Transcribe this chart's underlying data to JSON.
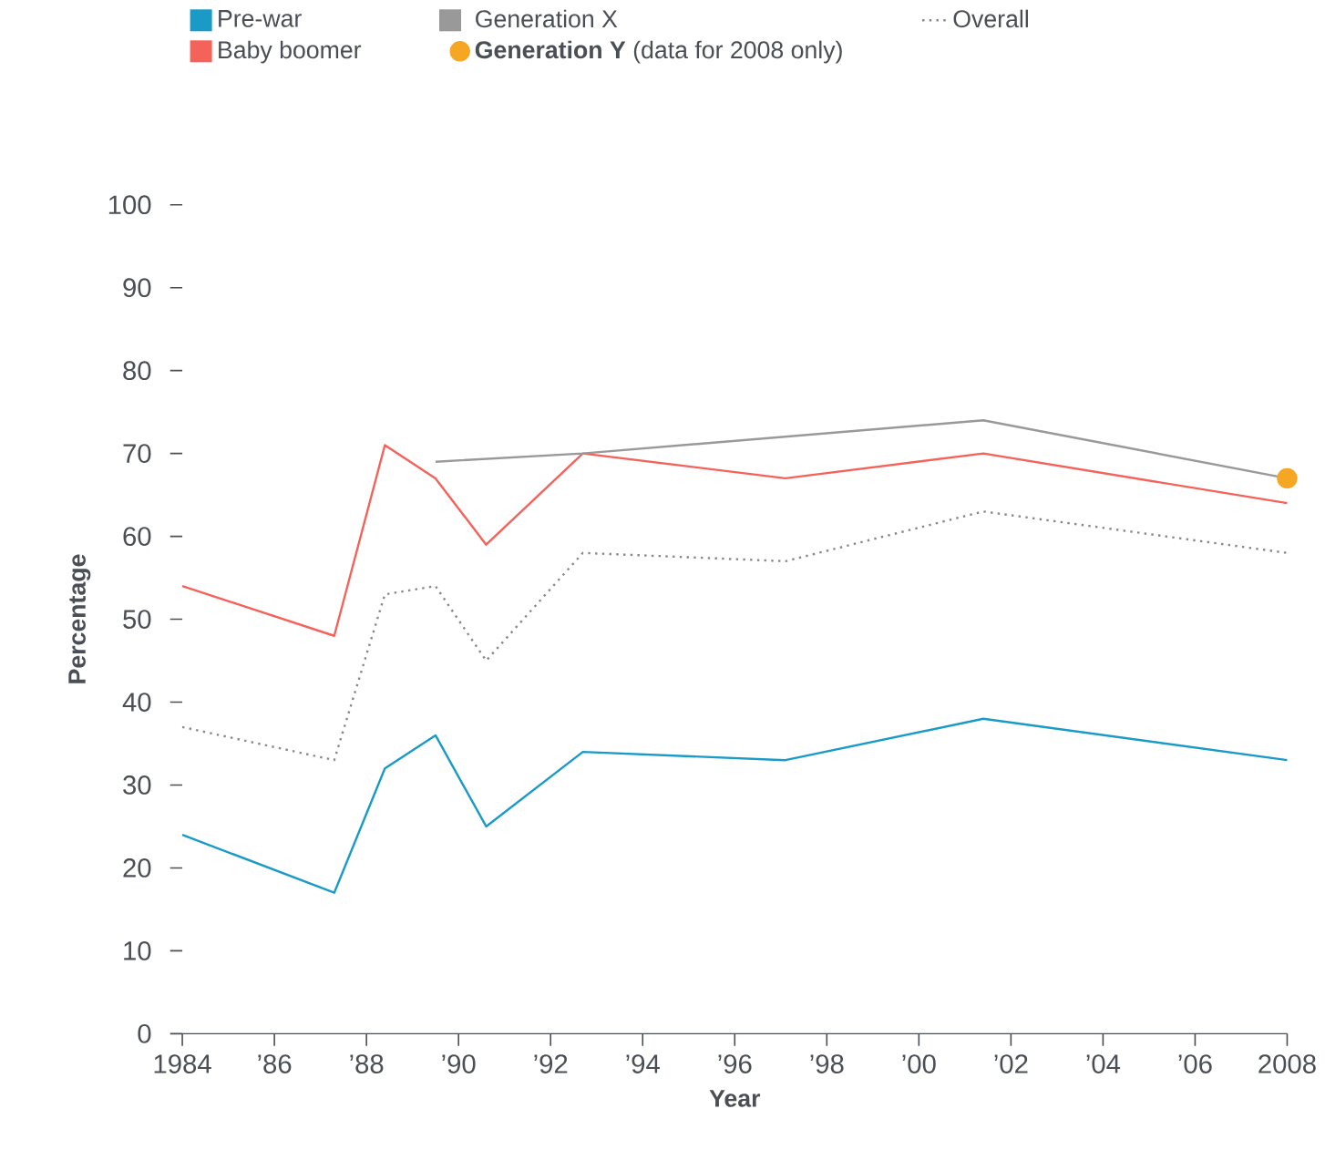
{
  "chart_data": {
    "type": "line",
    "xlabel": "Year",
    "ylabel": "Percentage",
    "x": [
      1984,
      1987.3,
      1988.4,
      1989.5,
      1990.6,
      1992.7,
      1997.1,
      2001.4,
      2008
    ],
    "series": [
      {
        "name": "Pre-war",
        "color": "#1a9bc7",
        "values": [
          24,
          17,
          32,
          36,
          25,
          34,
          33,
          38,
          33
        ]
      },
      {
        "name": "Baby boomer",
        "color": "#f4625a",
        "values": [
          54,
          48,
          71,
          67,
          59,
          70,
          67,
          70,
          64
        ]
      },
      {
        "name": "Generation X",
        "color": "#999999",
        "x": [
          1989.5,
          1992.7,
          2001.4,
          2008
        ],
        "values": [
          69,
          70,
          74,
          67
        ]
      },
      {
        "name": "**Generation Y** (data for 2008 only)",
        "type": "scatter",
        "marker": "circle",
        "color": "#f5a623",
        "x": [
          2008
        ],
        "values": [
          67
        ]
      },
      {
        "name": "Overall",
        "color": "#888888",
        "line_style": "dotted",
        "values": [
          37,
          33,
          53,
          54,
          45,
          58,
          57,
          63,
          58
        ]
      }
    ],
    "xlim": [
      1984,
      2008
    ],
    "xticks": [
      1984,
      {
        "value": 1986,
        "label": "’86"
      },
      {
        "value": 1988,
        "label": "’88"
      },
      {
        "value": 1990,
        "label": "’90"
      },
      {
        "value": 1992,
        "label": "’92"
      },
      {
        "value": 1994,
        "label": "’94"
      },
      {
        "value": 1996,
        "label": "’96"
      },
      {
        "value": 1998,
        "label": "’98"
      },
      {
        "value": 2000,
        "label": "’00"
      },
      {
        "value": 2002,
        "label": "’02"
      },
      {
        "value": 2004,
        "label": "’04"
      },
      {
        "value": 2006,
        "label": "’06"
      },
      2008
    ],
    "ylim": [
      0,
      100
    ],
    "yticks": [
      0,
      10,
      20,
      30,
      40,
      50,
      60,
      70,
      80,
      90,
      100
    ],
    "legend": "top"
  }
}
